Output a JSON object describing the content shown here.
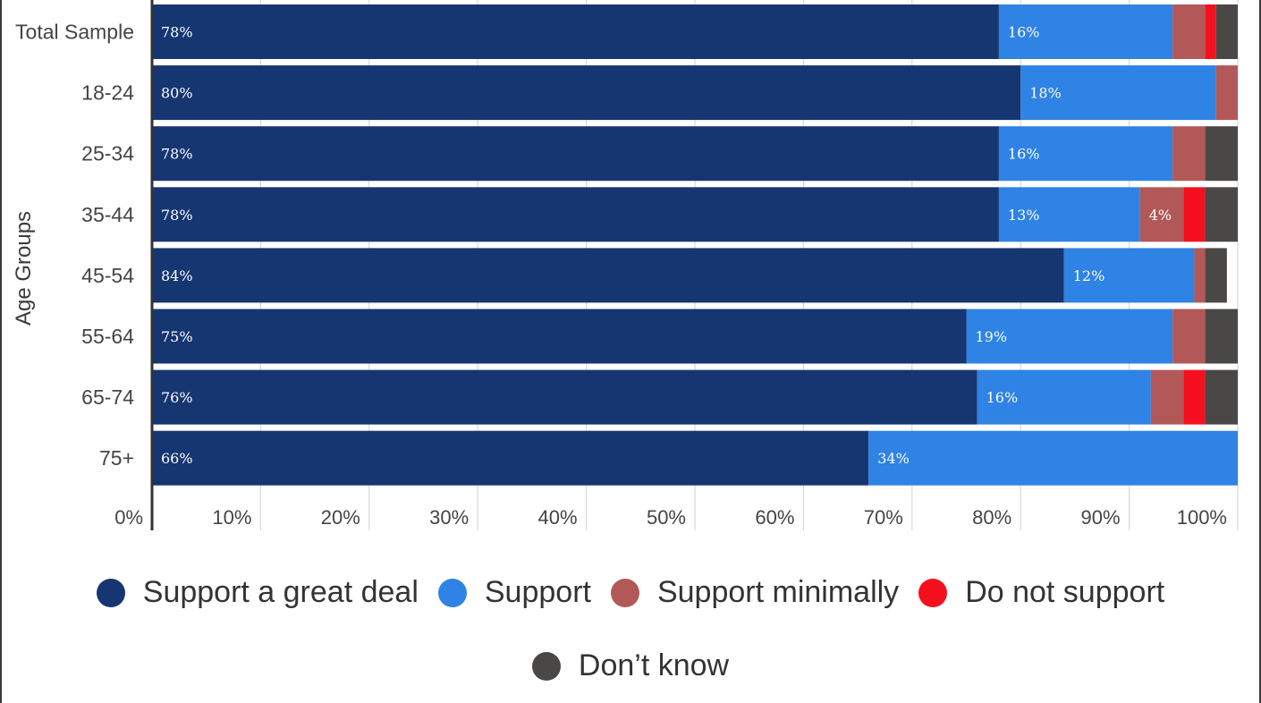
{
  "chart_data": {
    "type": "bar",
    "orientation": "horizontal",
    "stacked": true,
    "ylabel": "Age Groups",
    "xlabel": "",
    "xlim": [
      0,
      100
    ],
    "xticks": [
      "0%",
      "10%",
      "20%",
      "30%",
      "40%",
      "50%",
      "60%",
      "70%",
      "80%",
      "90%",
      "100%"
    ],
    "grid": "vertical",
    "legend_position": "bottom",
    "categories": [
      "Total Sample",
      "18-24",
      "25-34",
      "35-44",
      "45-54",
      "55-64",
      "65-74",
      "75+"
    ],
    "series": [
      {
        "name": "Support a great deal",
        "color": "#163672",
        "values": [
          78,
          80,
          78,
          78,
          84,
          75,
          76,
          66
        ],
        "labels": [
          "78%",
          "80%",
          "78%",
          "78%",
          "84%",
          "75%",
          "76%",
          "66%"
        ]
      },
      {
        "name": "Support",
        "color": "#2e83e4",
        "values": [
          16,
          18,
          16,
          13,
          12,
          19,
          16,
          34
        ],
        "labels": [
          "16%",
          "18%",
          "16%",
          "13%",
          "12%",
          "19%",
          "16%",
          "34%"
        ]
      },
      {
        "name": "Support minimally",
        "color": "#b35858",
        "values": [
          3,
          2,
          3,
          4,
          1,
          3,
          3,
          0
        ],
        "labels": [
          "",
          "",
          "",
          "4%",
          "",
          "",
          "",
          ""
        ]
      },
      {
        "name": "Do not support",
        "color": "#f5101e",
        "values": [
          1,
          0,
          0,
          2,
          0,
          0,
          2,
          0
        ],
        "labels": [
          "",
          "",
          "",
          "",
          "",
          "",
          "",
          ""
        ]
      },
      {
        "name": "Don’t know",
        "color": "#4a4846",
        "values": [
          2,
          0,
          3,
          3,
          2,
          3,
          3,
          0
        ],
        "labels": [
          "",
          "",
          "",
          "",
          "",
          "",
          "",
          ""
        ]
      }
    ]
  }
}
